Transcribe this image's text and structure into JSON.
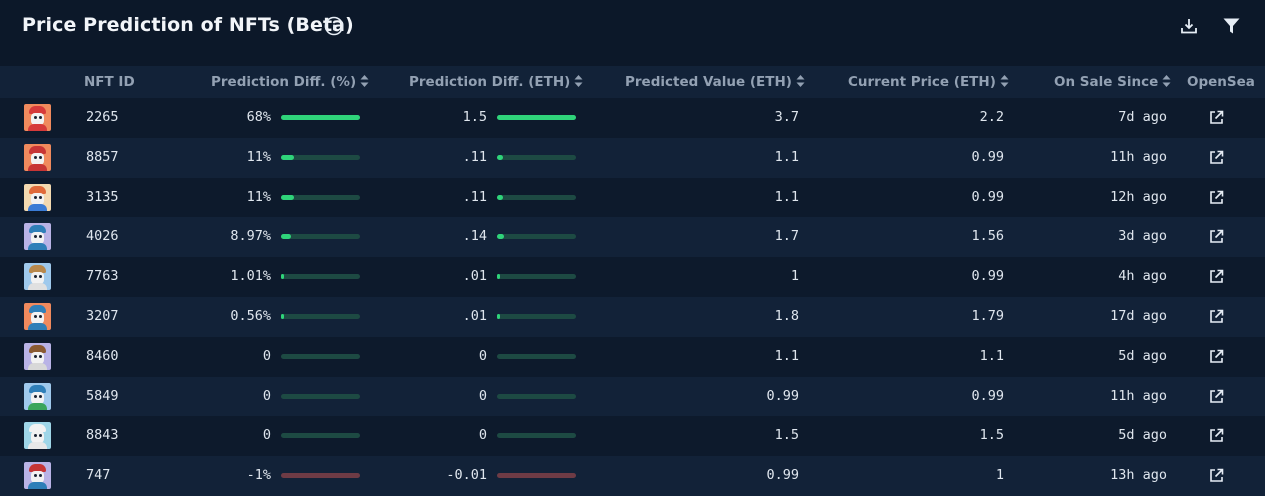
{
  "header": {
    "title": "Price Prediction of NFTs (Beta)",
    "icons": [
      "info-icon",
      "download-icon",
      "filter-icon"
    ]
  },
  "table": {
    "columns": [
      {
        "label": "NFT ID",
        "sortable": false
      },
      {
        "label": "Prediction Diff. (%)",
        "sortable": true
      },
      {
        "label": "Prediction Diff. (ETH)",
        "sortable": true
      },
      {
        "label": "Predicted Value (ETH)",
        "sortable": true
      },
      {
        "label": "Current Price (ETH)",
        "sortable": true
      },
      {
        "label": "On Sale Since",
        "sortable": true
      },
      {
        "label": "OpenSea",
        "sortable": false
      }
    ],
    "rows": [
      {
        "id": "2265",
        "diff_pct": "68%",
        "diff_pct_level": 1.0,
        "diff_eth": "1.5",
        "diff_eth_level": 1.0,
        "predicted": "3.7",
        "current": "2.2",
        "since": "7d ago",
        "avatar_bg": "#f08a5d",
        "avatar_hat": "#d63a3a",
        "avatar_body": "#d63a3a",
        "link_icon": "external-link-icon"
      },
      {
        "id": "8857",
        "diff_pct": "11%",
        "diff_pct_level": 0.16,
        "diff_eth": ".11",
        "diff_eth_level": 0.07,
        "predicted": "1.1",
        "current": "0.99",
        "since": "11h ago",
        "avatar_bg": "#f08a5d",
        "avatar_hat": "#c73535",
        "avatar_body": "#c73535",
        "link_icon": "external-link-icon"
      },
      {
        "id": "3135",
        "diff_pct": "11%",
        "diff_pct_level": 0.16,
        "diff_eth": ".11",
        "diff_eth_level": 0.07,
        "predicted": "1.1",
        "current": "0.99",
        "since": "12h ago",
        "avatar_bg": "#f3d9b0",
        "avatar_hat": "#e06a3a",
        "avatar_body": "#3a7bd5",
        "link_icon": "external-link-icon"
      },
      {
        "id": "4026",
        "diff_pct": "8.97%",
        "diff_pct_level": 0.13,
        "diff_eth": ".14",
        "diff_eth_level": 0.09,
        "predicted": "1.7",
        "current": "1.56",
        "since": "3d ago",
        "avatar_bg": "#b9b3e6",
        "avatar_hat": "#2f7fb8",
        "avatar_body": "#2f7fb8",
        "link_icon": "external-link-icon"
      },
      {
        "id": "7763",
        "diff_pct": "1.01%",
        "diff_pct_level": 0.015,
        "diff_eth": ".01",
        "diff_eth_level": 0.007,
        "predicted": "1",
        "current": "0.99",
        "since": "4h ago",
        "avatar_bg": "#9fc9ec",
        "avatar_hat": "#b8884c",
        "avatar_body": "#e0e0e0",
        "link_icon": "external-link-icon"
      },
      {
        "id": "3207",
        "diff_pct": "0.56%",
        "diff_pct_level": 0.008,
        "diff_eth": ".01",
        "diff_eth_level": 0.007,
        "predicted": "1.8",
        "current": "1.79",
        "since": "17d ago",
        "avatar_bg": "#f08a5d",
        "avatar_hat": "#2f7fb8",
        "avatar_body": "#2f7fb8",
        "link_icon": "external-link-icon"
      },
      {
        "id": "8460",
        "diff_pct": "0",
        "diff_pct_level": 0,
        "diff_eth": "0",
        "diff_eth_level": 0,
        "predicted": "1.1",
        "current": "1.1",
        "since": "5d ago",
        "avatar_bg": "#b9b3e6",
        "avatar_hat": "#8a5a32",
        "avatar_body": "#d8d8d8",
        "link_icon": "external-link-icon"
      },
      {
        "id": "5849",
        "diff_pct": "0",
        "diff_pct_level": 0,
        "diff_eth": "0",
        "diff_eth_level": 0,
        "predicted": "0.99",
        "current": "0.99",
        "since": "11h ago",
        "avatar_bg": "#9fc9ec",
        "avatar_hat": "#2f7fb8",
        "avatar_body": "#3aa55a",
        "link_icon": "external-link-icon"
      },
      {
        "id": "8843",
        "diff_pct": "0",
        "diff_pct_level": 0,
        "diff_eth": "0",
        "diff_eth_level": 0,
        "predicted": "1.5",
        "current": "1.5",
        "since": "5d ago",
        "avatar_bg": "#9fd6e8",
        "avatar_hat": "#f2f2f2",
        "avatar_body": "#e8e8e8",
        "link_icon": "external-link-icon"
      },
      {
        "id": "747",
        "diff_pct": "-1%",
        "diff_pct_level": 0,
        "diff_eth": "-0.01",
        "diff_eth_level": 0,
        "predicted": "0.99",
        "current": "1",
        "since": "13h ago",
        "avatar_bg": "#b9b3e6",
        "avatar_hat": "#c73535",
        "avatar_body": "#2f7fb8",
        "link_icon": "external-link-icon",
        "negative": true
      }
    ]
  },
  "colors": {
    "background": "#0c1829",
    "row_alt": "#122238",
    "bar_positive": "#2fd47a",
    "bar_track": "#1d4a43",
    "bar_negative_track": "#6e3b45"
  }
}
